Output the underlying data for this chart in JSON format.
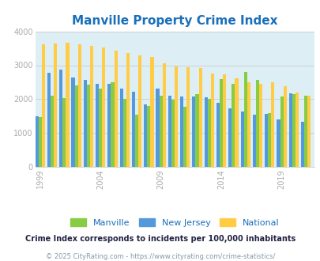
{
  "title": "Manville Property Crime Index",
  "title_color": "#1a6fba",
  "subtitle": "Crime Index corresponds to incidents per 100,000 inhabitants",
  "footer": "© 2025 CityRating.com - https://www.cityrating.com/crime-statistics/",
  "background_color": "#ddeef5",
  "years": [
    1999,
    2000,
    2001,
    2002,
    2003,
    2004,
    2005,
    2006,
    2007,
    2008,
    2009,
    2010,
    2011,
    2012,
    2013,
    2014,
    2015,
    2016,
    2017,
    2018,
    2019,
    2020,
    2021
  ],
  "manville": [
    1480,
    2100,
    2030,
    2400,
    2420,
    2320,
    2500,
    2020,
    1540,
    1800,
    2100,
    1990,
    1780,
    2150,
    2000,
    2600,
    2460,
    2810,
    2560,
    1590,
    2090,
    2150,
    2110
  ],
  "new_jersey": [
    1490,
    2790,
    2870,
    2650,
    2560,
    2450,
    2460,
    2310,
    2230,
    1840,
    2310,
    2100,
    2090,
    2080,
    2050,
    1900,
    1730,
    1640,
    1550,
    1560,
    1410,
    2170,
    1340
  ],
  "national": [
    3620,
    3640,
    3660,
    3610,
    3560,
    3520,
    3440,
    3360,
    3290,
    3240,
    3060,
    2960,
    2940,
    2910,
    2750,
    2730,
    2610,
    2490,
    2460,
    2490,
    2380,
    2200,
    2100
  ],
  "manville_color": "#88cc44",
  "nj_color": "#5599dd",
  "national_color": "#ffcc44",
  "ylim": [
    0,
    4000
  ],
  "yticks": [
    0,
    1000,
    2000,
    3000,
    4000
  ],
  "xtick_positions": [
    1999,
    2004,
    2009,
    2014,
    2019
  ],
  "bar_width": 0.27,
  "figsize": [
    4.06,
    3.3
  ],
  "dpi": 100
}
